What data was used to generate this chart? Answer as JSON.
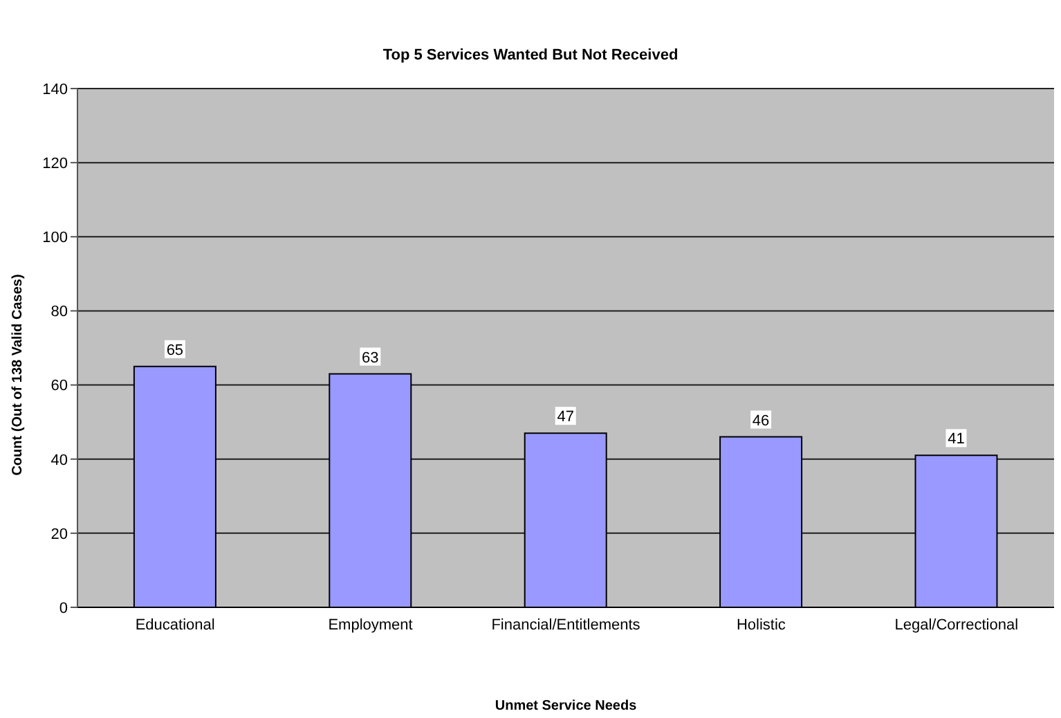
{
  "chart_data": {
    "type": "bar",
    "title": "Top 5 Services Wanted But Not Received",
    "xlabel": "Unmet Service Needs",
    "ylabel": "Count (Out of 138 Valid Cases)",
    "categories": [
      "Educational",
      "Employment",
      "Financial/Entitlements",
      "Holistic",
      "Legal/Correctional"
    ],
    "values": [
      65,
      63,
      47,
      46,
      41
    ],
    "color": "#9999ff",
    "ylim": [
      0,
      140
    ],
    "yticks": [
      0,
      20,
      40,
      60,
      80,
      100,
      120,
      140
    ],
    "grid": "y",
    "data_labels": true
  }
}
